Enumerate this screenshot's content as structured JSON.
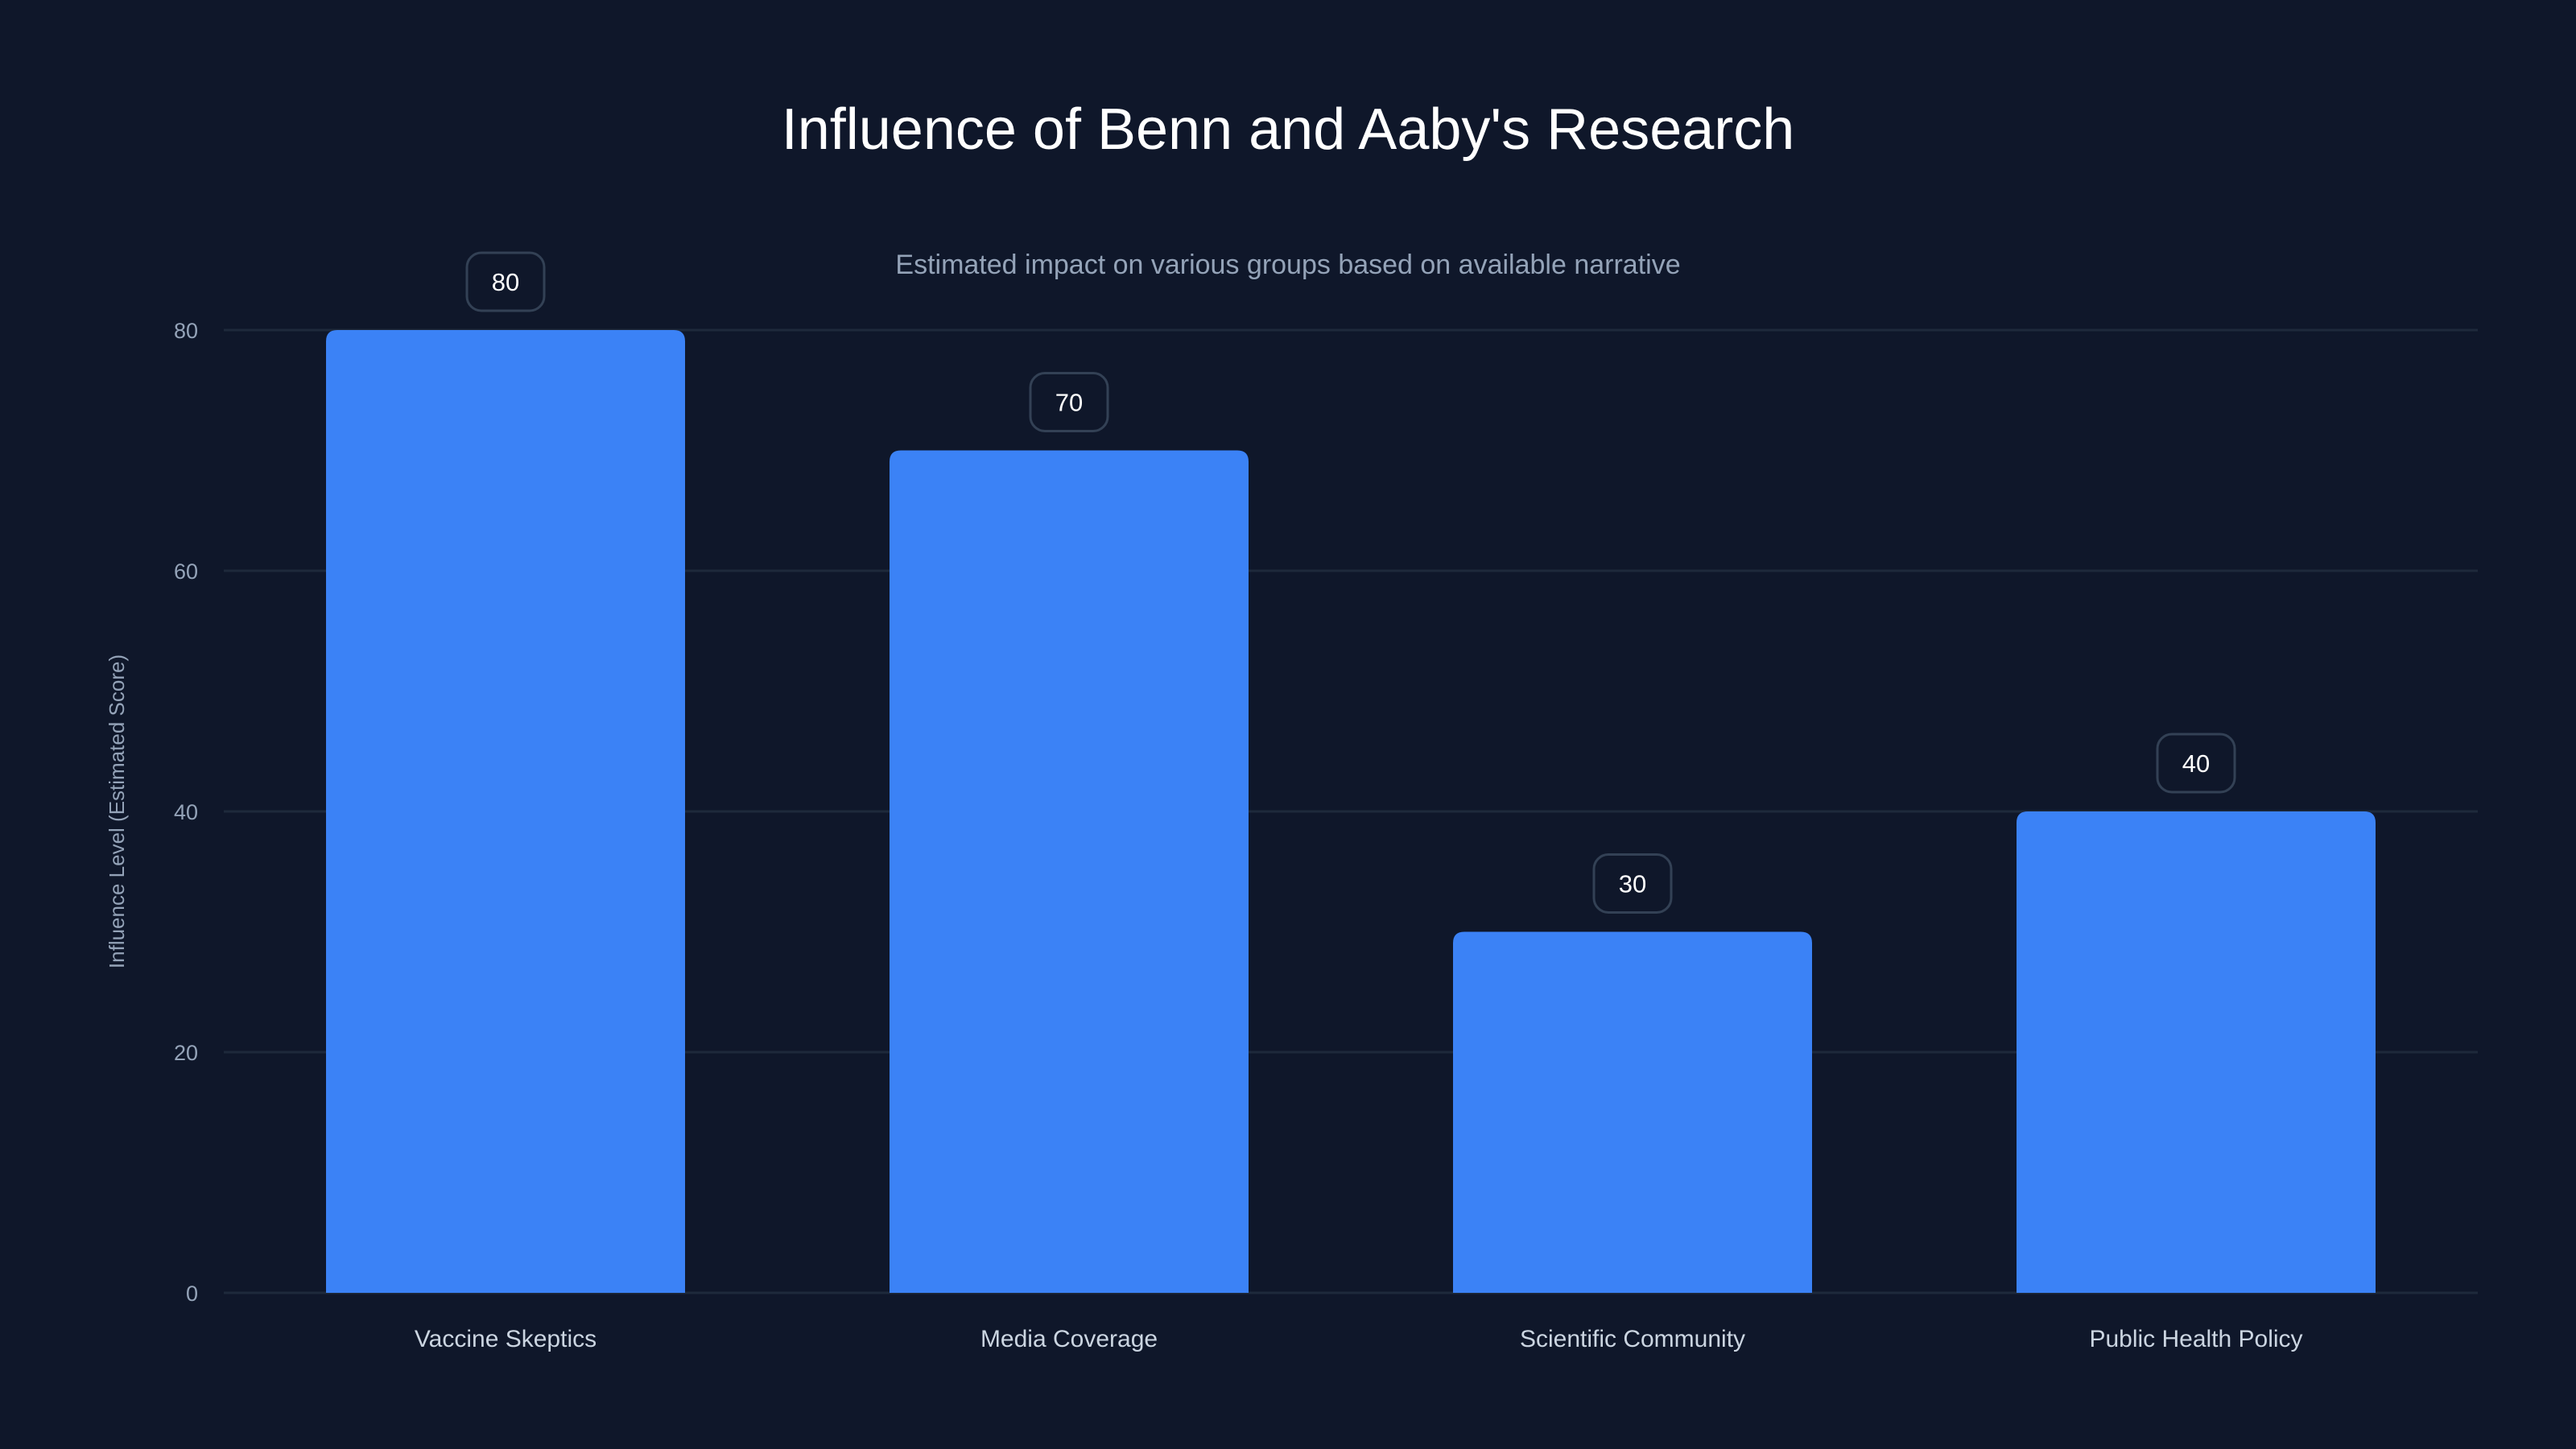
{
  "chart_data": {
    "type": "bar",
    "title": "Influence of Benn and Aaby's Research",
    "subtitle": "Estimated impact on various groups based on available narrative",
    "xlabel": "",
    "ylabel": "Influence Level (Estimated Score)",
    "categories": [
      "Vaccine Skeptics",
      "Media Coverage",
      "Scientific Community",
      "Public Health Policy"
    ],
    "values": [
      80,
      70,
      30,
      40
    ],
    "data_labels": [
      "80",
      "70",
      "30",
      "40"
    ],
    "ylim": [
      0,
      80
    ],
    "yticks": [
      0,
      20,
      40,
      60,
      80
    ],
    "grid": true,
    "colors": {
      "background": "#0f172a",
      "bar": "#3b82f6",
      "grid": "#1e293b",
      "tick": "#94a3b8",
      "label": "#cbd5e1",
      "title": "#ffffff"
    }
  }
}
